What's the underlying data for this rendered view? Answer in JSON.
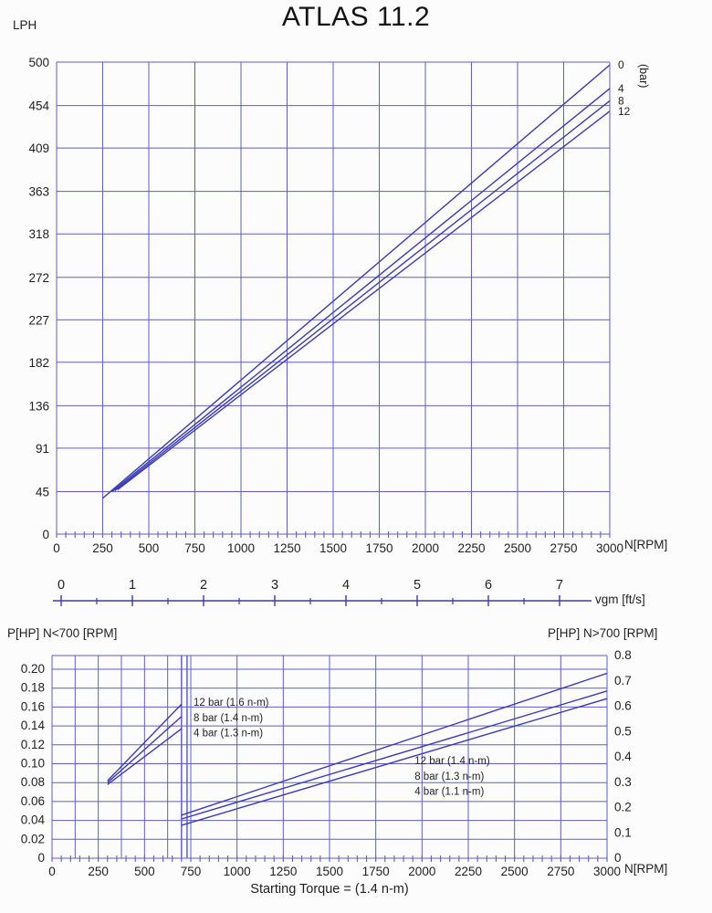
{
  "colors": {
    "line": "#3a3ab8",
    "grid": "#5e5ec6",
    "text": "#1f1f1f",
    "background": "#fcfcfc"
  },
  "chart_data": [
    {
      "type": "line",
      "title": "ATLAS 11.2",
      "ylabel": "LPH",
      "xlabel": "N[RPM]",
      "secondary_axis_label": "(bar)",
      "xlim": [
        0,
        3000
      ],
      "ylim": [
        0,
        500
      ],
      "x_ticks": [
        0,
        250,
        500,
        750,
        1000,
        1250,
        1500,
        1750,
        2000,
        2250,
        2500,
        2750,
        3000
      ],
      "y_ticks": [
        0,
        45,
        91,
        136,
        182,
        227,
        272,
        318,
        363,
        409,
        454,
        500
      ],
      "grid": true,
      "legend_position": "right",
      "series": [
        {
          "name": "0",
          "pressure_bar": 0,
          "x": [
            250,
            3000
          ],
          "y": [
            38,
            497
          ]
        },
        {
          "name": "4",
          "pressure_bar": 4,
          "x": [
            300,
            3000
          ],
          "y": [
            45,
            472
          ]
        },
        {
          "name": "8",
          "pressure_bar": 8,
          "x": [
            315,
            3000
          ],
          "y": [
            46,
            459
          ]
        },
        {
          "name": "12",
          "pressure_bar": 12,
          "x": [
            330,
            3000
          ],
          "y": [
            47,
            448
          ]
        }
      ]
    },
    {
      "type": "axis",
      "label": "vgm [ft/s]",
      "ticks": [
        0,
        1,
        2,
        3,
        4,
        5,
        6,
        7
      ]
    },
    {
      "type": "line",
      "xlabel": "N[RPM]",
      "left_axis_label": "P[HP] N<700 [RPM]",
      "right_axis_label": "P[HP] N>700 [RPM]",
      "caption": "Starting Torque =  (1.4 n-m)",
      "xlim": [
        0,
        3000
      ],
      "left_ylim": [
        0,
        0.2
      ],
      "right_ylim": [
        0,
        0.8
      ],
      "x_ticks": [
        0,
        250,
        500,
        750,
        1000,
        1250,
        1500,
        1750,
        2000,
        2250,
        2500,
        2750,
        3000
      ],
      "left_y_ticks": [
        0,
        0.02,
        0.04,
        0.06,
        0.08,
        0.1,
        0.12,
        0.14,
        0.16,
        0.18,
        0.2
      ],
      "right_y_ticks": [
        0,
        0.1,
        0.2,
        0.3,
        0.4,
        0.5,
        0.6,
        0.7,
        0.8
      ],
      "divider_x": [
        700,
        730
      ],
      "series_low_speed": [
        {
          "name": "12 bar (1.6 n-m)",
          "x": [
            300,
            700
          ],
          "y": [
            0.082,
            0.163
          ]
        },
        {
          "name": "8 bar (1.4 n-m)",
          "x": [
            300,
            700
          ],
          "y": [
            0.08,
            0.15
          ]
        },
        {
          "name": "4 bar (1.3 n-m)",
          "x": [
            300,
            700
          ],
          "y": [
            0.078,
            0.137
          ]
        }
      ],
      "series_high_speed": [
        {
          "name": "12 bar (1.4 n-m)",
          "x": [
            700,
            3000
          ],
          "y": [
            0.17,
            0.73
          ]
        },
        {
          "name": "8 bar (1.3 n-m)",
          "x": [
            700,
            3000
          ],
          "y": [
            0.155,
            0.66
          ]
        },
        {
          "name": "4 bar (1.1 n-m)",
          "x": [
            700,
            3000
          ],
          "y": [
            0.13,
            0.63
          ]
        }
      ],
      "annotations_low": [
        {
          "text": "12 bar (1.6 n-m)",
          "x": 765,
          "y": 0.165
        },
        {
          "text": "8 bar (1.4 n-m)",
          "x": 765,
          "y": 0.149
        },
        {
          "text": "4 bar (1.3 n-m)",
          "x": 765,
          "y": 0.133
        }
      ],
      "annotations_high": [
        {
          "text": "12 bar (1.4 n-m)",
          "x": 1960,
          "y": 0.385
        },
        {
          "text": "8 bar (1.3 n-m)",
          "x": 1960,
          "y": 0.325
        },
        {
          "text": "4 bar (1.1 n-m)",
          "x": 1960,
          "y": 0.265
        }
      ]
    }
  ]
}
